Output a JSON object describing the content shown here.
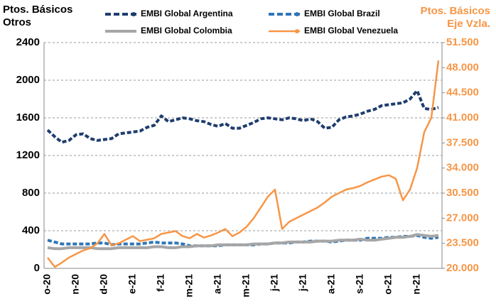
{
  "chart_data": {
    "type": "line",
    "y_label_lines": [
      "Ptos. Básicos",
      "Otros"
    ],
    "y2_label_lines": [
      "Ptos. Básicos",
      "Eje Vzla."
    ],
    "categories": [
      "o-20",
      null,
      null,
      null,
      "n-20",
      null,
      null,
      null,
      "d-20",
      null,
      null,
      null,
      "e-21",
      null,
      null,
      null,
      "f-21",
      null,
      null,
      null,
      "m-21",
      null,
      null,
      null,
      "a-21",
      null,
      null,
      null,
      "m-21",
      null,
      null,
      null,
      "j-21",
      null,
      null,
      null,
      "j-21",
      null,
      null,
      null,
      "a-21",
      null,
      null,
      null,
      "s-21",
      null,
      null,
      null,
      "o-21",
      null,
      null,
      null,
      "n-21",
      null,
      null,
      null
    ],
    "ylim": [
      0,
      2400
    ],
    "yticks": [
      0,
      400,
      800,
      1200,
      1600,
      2000,
      2400
    ],
    "y2lim": [
      20000,
      51500
    ],
    "y2ticks": [
      {
        "value": 20000,
        "label": "20.000"
      },
      {
        "value": 23500,
        "label": "23.500"
      },
      {
        "value": 27000,
        "label": "27.000"
      },
      {
        "value": 30500,
        "label": "30.500"
      },
      {
        "value": 34000,
        "label": "34.000"
      },
      {
        "value": 37500,
        "label": "37.500"
      },
      {
        "value": 41000,
        "label": "41.000"
      },
      {
        "value": 44500,
        "label": "44.500"
      },
      {
        "value": 48000,
        "label": "48.000"
      },
      {
        "value": 51500,
        "label": "51.500"
      }
    ],
    "grid": true,
    "series": [
      {
        "name": "EMBI Global Argentina",
        "color": "#1f3d6e",
        "style": "dashed",
        "values": [
          1470,
          1400,
          1340,
          1360,
          1420,
          1430,
          1380,
          1360,
          1370,
          1380,
          1430,
          1440,
          1450,
          1460,
          1500,
          1520,
          1620,
          1560,
          1580,
          1600,
          1590,
          1570,
          1560,
          1530,
          1510,
          1540,
          1490,
          1490,
          1520,
          1550,
          1590,
          1600,
          1590,
          1580,
          1600,
          1590,
          1570,
          1590,
          1560,
          1490,
          1500,
          1580,
          1610,
          1620,
          1640,
          1670,
          1690,
          1730,
          1740,
          1750,
          1760,
          1800,
          1890,
          1700,
          1690,
          1710
        ]
      },
      {
        "name": "EMBI Global Brazil",
        "color": "#2e75b6",
        "style": "dashed",
        "values": [
          300,
          280,
          260,
          260,
          260,
          260,
          260,
          270,
          270,
          250,
          260,
          260,
          260,
          260,
          270,
          280,
          270,
          270,
          270,
          260,
          240,
          240,
          240,
          240,
          240,
          250,
          250,
          250,
          250,
          250,
          260,
          260,
          270,
          270,
          270,
          280,
          280,
          290,
          290,
          290,
          280,
          290,
          300,
          300,
          300,
          320,
          320,
          320,
          330,
          330,
          340,
          340,
          350,
          330,
          320,
          330
        ]
      },
      {
        "name": "EMBI Global Colombia",
        "color": "#a6a6a6",
        "style": "solid",
        "values": [
          220,
          210,
          210,
          220,
          220,
          220,
          220,
          210,
          210,
          210,
          220,
          220,
          220,
          220,
          220,
          230,
          230,
          220,
          220,
          230,
          230,
          240,
          240,
          240,
          250,
          250,
          250,
          250,
          250,
          260,
          260,
          260,
          270,
          270,
          280,
          280,
          280,
          280,
          290,
          290,
          290,
          300,
          300,
          300,
          310,
          300,
          300,
          310,
          320,
          330,
          330,
          340,
          360,
          350,
          340,
          350
        ]
      },
      {
        "name": "EMBI Global Venezuela",
        "color": "#f79646",
        "style": "marker",
        "axis": "y2",
        "values": [
          21500,
          20200,
          20800,
          21500,
          22000,
          22500,
          22800,
          23500,
          24800,
          23200,
          23500,
          24000,
          24500,
          23800,
          24000,
          24200,
          24800,
          25000,
          25200,
          24500,
          24200,
          24800,
          24300,
          24600,
          25000,
          25500,
          24500,
          25000,
          25800,
          27000,
          28500,
          30000,
          31000,
          25500,
          26500,
          27000,
          27500,
          28000,
          28500,
          29200,
          30000,
          30500,
          31000,
          31200,
          31500,
          32000,
          32400,
          32800,
          33000,
          32500,
          29500,
          31000,
          34000,
          39000,
          41000,
          49000
        ]
      }
    ]
  }
}
